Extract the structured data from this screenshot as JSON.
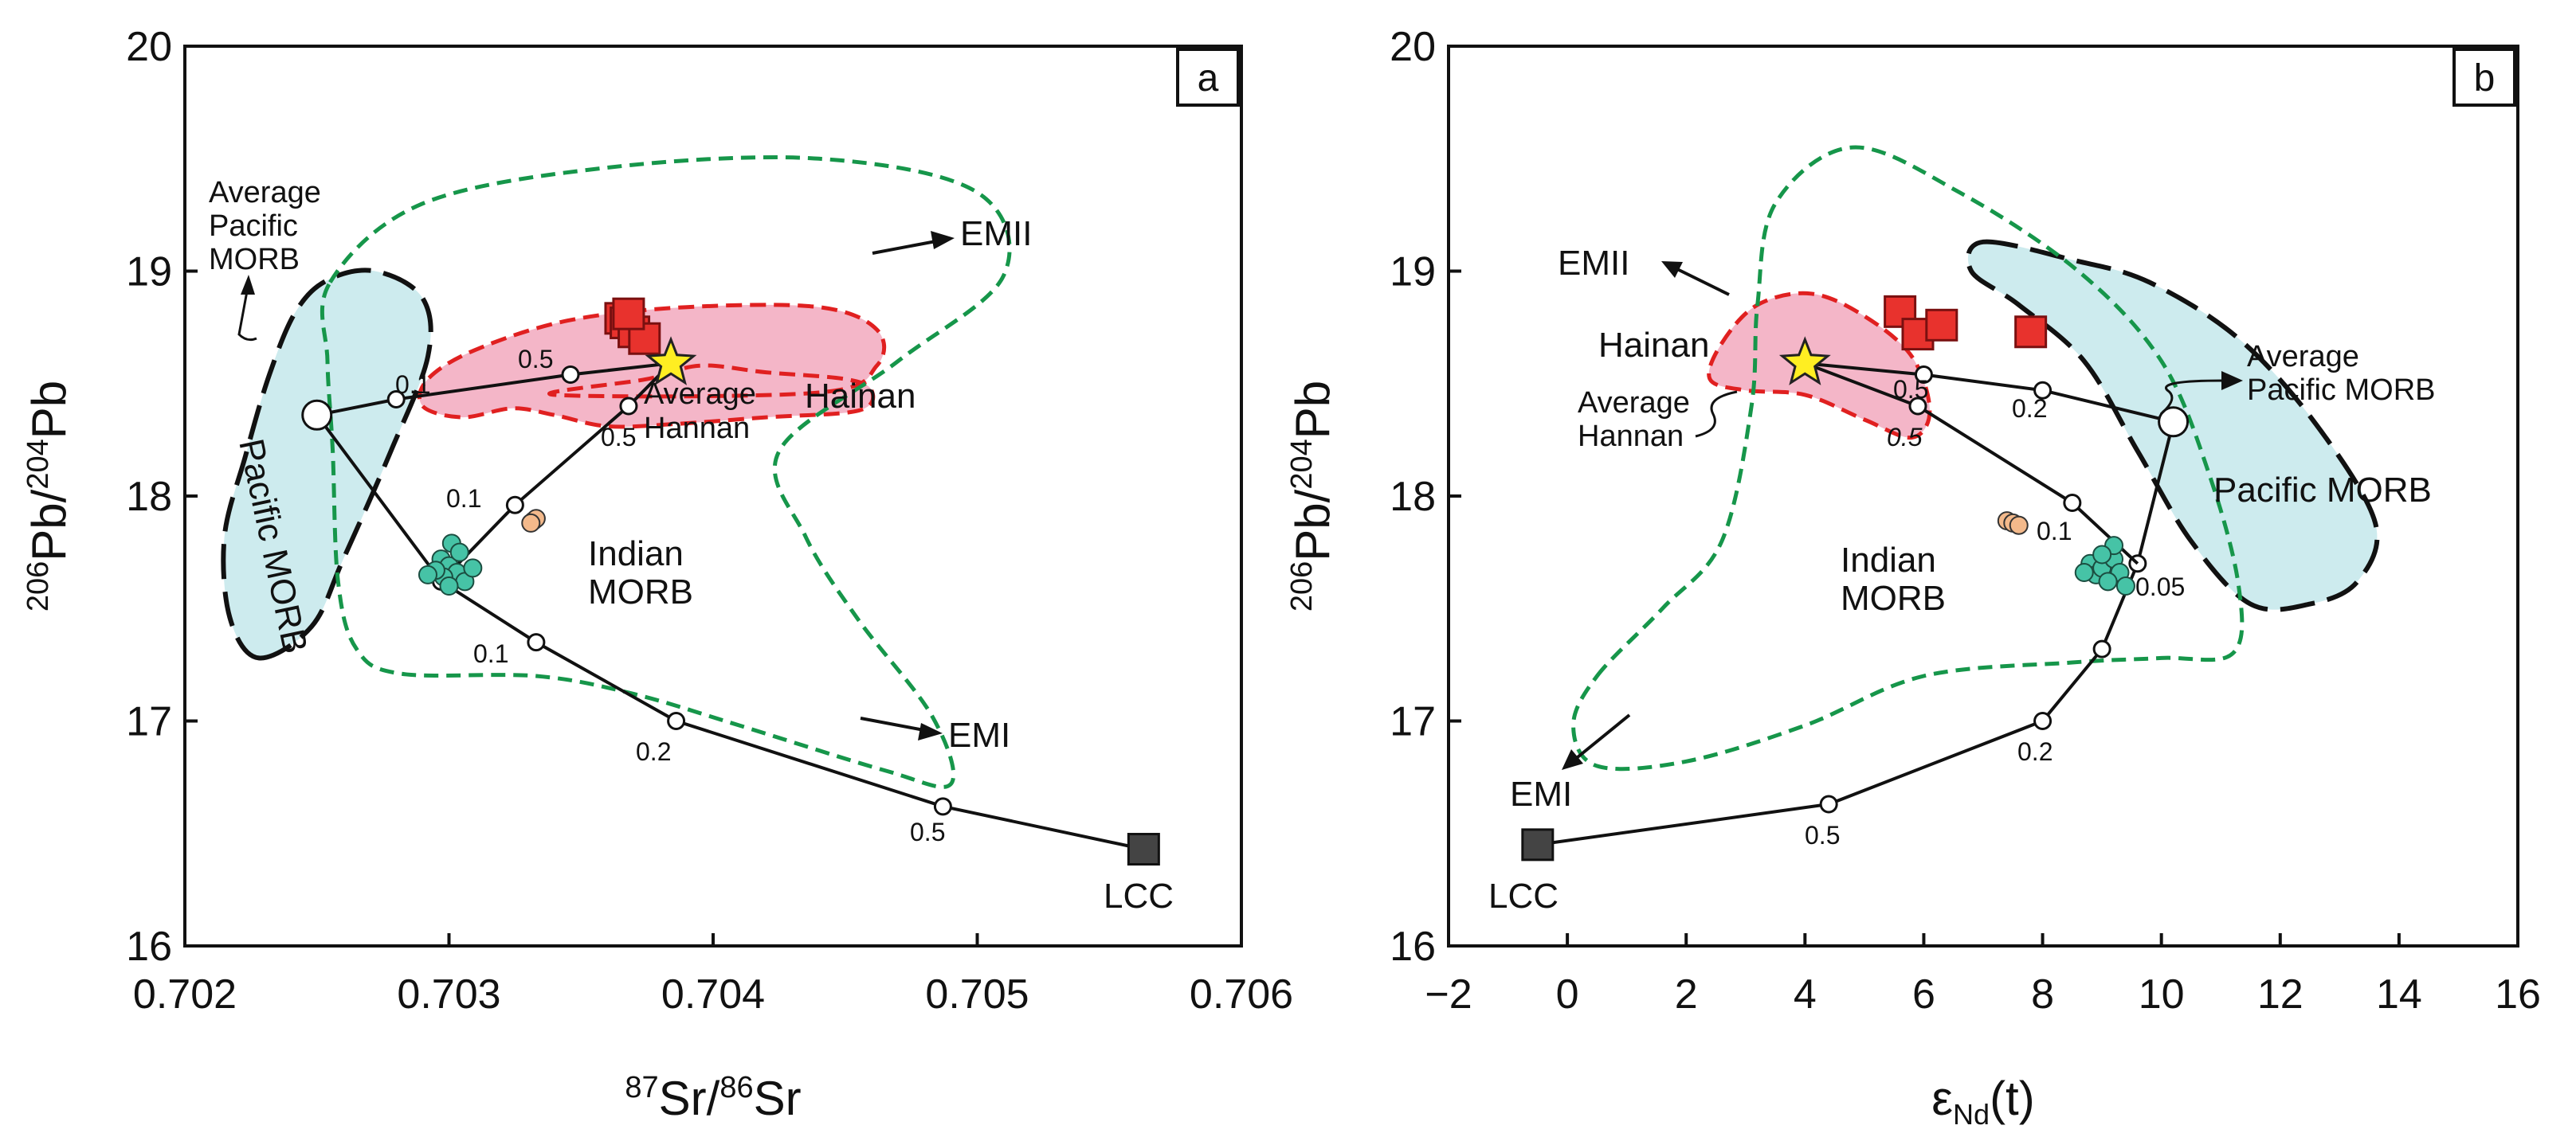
{
  "chart_data": [
    {
      "panel": "a",
      "type": "scatter",
      "xlabel": "87Sr/86Sr",
      "xlabel_parts": {
        "sup1": "87",
        "t1": "Sr/",
        "sup2": "86",
        "t2": "Sr"
      },
      "ylabel": "206Pb/204Pb",
      "ylabel_parts": {
        "sup1": "206",
        "t1": "Pb/",
        "sup2": "204",
        "t2": "Pb"
      },
      "xlim": [
        0.702,
        0.706
      ],
      "ylim": [
        16,
        20
      ],
      "xticks": [
        "0.702",
        "0.703",
        "0.704",
        "0.705",
        "0.706"
      ],
      "yticks": [
        "16",
        "17",
        "18",
        "19",
        "20"
      ],
      "fields": [
        {
          "name": "Hainan",
          "color": "#f4b6c8",
          "outline": "#e02020",
          "points": [
            [
              0.7034,
              18.45
            ],
            [
              0.70375,
              18.52
            ],
            [
              0.70395,
              18.58
            ],
            [
              0.7042,
              18.55
            ],
            [
              0.7045,
              18.52
            ],
            [
              0.7046,
              18.47
            ],
            [
              0.70455,
              18.38
            ],
            [
              0.7042,
              18.35
            ],
            [
              0.70385,
              18.32
            ],
            [
              0.7036,
              18.31
            ],
            [
              0.7034,
              18.36
            ],
            [
              0.70324,
              18.39
            ],
            [
              0.70305,
              18.35
            ],
            [
              0.7029,
              18.4
            ],
            [
              0.70292,
              18.52
            ],
            [
              0.7031,
              18.65
            ],
            [
              0.70345,
              18.78
            ],
            [
              0.7039,
              18.84
            ],
            [
              0.7044,
              18.84
            ],
            [
              0.70462,
              18.74
            ],
            [
              0.70462,
              18.58
            ],
            [
              0.7044,
              18.46
            ]
          ]
        },
        {
          "name": "Pacific MORB",
          "color": "#cdebee",
          "outline": "#111111",
          "points": [
            [
              0.70228,
              17.28
            ],
            [
              0.70248,
              17.42
            ],
            [
              0.7026,
              17.72
            ],
            [
              0.70278,
              18.2
            ],
            [
              0.70292,
              18.62
            ],
            [
              0.7029,
              18.88
            ],
            [
              0.70272,
              19.0
            ],
            [
              0.70254,
              18.96
            ],
            [
              0.70242,
              18.82
            ],
            [
              0.70232,
              18.54
            ],
            [
              0.70223,
              18.18
            ],
            [
              0.70215,
              17.82
            ],
            [
              0.70217,
              17.46
            ]
          ]
        },
        {
          "name": "Indian MORB",
          "color": "none",
          "outline": "#16964a",
          "points": [
            [
              0.70255,
              18.95
            ],
            [
              0.7029,
              19.3
            ],
            [
              0.7036,
              19.46
            ],
            [
              0.7044,
              19.5
            ],
            [
              0.705,
              19.35
            ],
            [
              0.7051,
              18.98
            ],
            [
              0.7047,
              18.6
            ],
            [
              0.70425,
              18.2
            ],
            [
              0.70435,
              17.82
            ],
            [
              0.70455,
              17.45
            ],
            [
              0.70483,
              17.02
            ],
            [
              0.7049,
              16.72
            ],
            [
              0.70465,
              16.78
            ],
            [
              0.7041,
              16.98
            ],
            [
              0.7037,
              17.12
            ],
            [
              0.70333,
              17.2
            ],
            [
              0.70282,
              17.21
            ],
            [
              0.70265,
              17.32
            ],
            [
              0.70258,
              17.62
            ],
            [
              0.70256,
              18.2
            ],
            [
              0.70254,
              18.6
            ]
          ]
        }
      ],
      "mixing_lines": [
        {
          "from": "Average Pacific MORB",
          "to": "Average Hannan",
          "points": [
            [
              0.7025,
              18.36
            ],
            [
              0.7028,
              18.43
            ],
            [
              0.70346,
              18.54
            ],
            [
              0.70384,
              18.59
            ]
          ],
          "labels": [
            "0.1",
            "0.5"
          ]
        },
        {
          "from": "Average Pacific MORB",
          "to": "LCC",
          "points": [
            [
              0.7025,
              18.36
            ],
            [
              0.70297,
              17.62
            ],
            [
              0.70333,
              17.35
            ],
            [
              0.70386,
              17.0
            ],
            [
              0.70487,
              16.62
            ],
            [
              0.70563,
              16.43
            ]
          ],
          "labels": [
            "0.1",
            "0.2",
            "0.5"
          ]
        },
        {
          "from": "LCC",
          "to": "Average Hannan",
          "points": [
            [
              0.70297,
              17.62
            ],
            [
              0.70325,
              17.96
            ],
            [
              0.70368,
              18.4
            ],
            [
              0.70384,
              18.59
            ]
          ],
          "labels": [
            "0.1",
            "0.5"
          ]
        }
      ],
      "samples_red_squares": [
        [
          0.70365,
          18.79
        ],
        [
          0.70367,
          18.77
        ],
        [
          0.7037,
          18.73
        ],
        [
          0.70374,
          18.7
        ],
        [
          0.70368,
          18.81
        ]
      ],
      "samples_teal": [
        [
          0.70297,
          17.72
        ],
        [
          0.703,
          17.69
        ],
        [
          0.70303,
          17.66
        ],
        [
          0.70298,
          17.64
        ],
        [
          0.70306,
          17.62
        ],
        [
          0.703,
          17.6
        ],
        [
          0.70295,
          17.67
        ],
        [
          0.70309,
          17.68
        ],
        [
          0.70301,
          17.79
        ],
        [
          0.70304,
          17.75
        ],
        [
          0.70292,
          17.65
        ]
      ],
      "samples_orange": [
        [
          0.70332,
          17.89
        ],
        [
          0.70333,
          17.9
        ],
        [
          0.70331,
          17.88
        ]
      ],
      "endmembers": {
        "pacific": {
          "x": 0.7025,
          "y": 18.36,
          "label": "Average Pacific MORB"
        },
        "hannan": {
          "x": 0.70384,
          "y": 18.59,
          "label": "Average Hannan"
        },
        "lcc": {
          "x": 0.70563,
          "y": 16.43,
          "label": "LCC"
        }
      },
      "annotations": {
        "panel_label": "a",
        "emii": "EMII",
        "emi": "EMI",
        "lcc": "LCC",
        "hainan": "Hainan",
        "average_hannan": [
          "Average",
          "Hannan"
        ],
        "average_pacific_morb": [
          "Average",
          "Pacific",
          "MORB"
        ],
        "pacific_morb_rotated": "Pacific MORB",
        "indian_morb": [
          "Indian",
          "MORB"
        ],
        "fraction_labels": [
          "0.1",
          "0.5",
          "0.1",
          "0.5",
          "0.1",
          "0.2",
          "0.5"
        ]
      }
    },
    {
      "panel": "b",
      "type": "scatter",
      "xlabel": "εNd(t)",
      "xlabel_parts": {
        "t1": "ε",
        "sub": "Nd",
        "t2": "(t)"
      },
      "ylabel": "206Pb/204Pb",
      "ylabel_parts": {
        "sup1": "206",
        "t1": "Pb/",
        "sup2": "204",
        "t2": "Pb"
      },
      "xlim": [
        -2,
        16
      ],
      "ylim": [
        16,
        20
      ],
      "xticks": [
        "−2",
        "0",
        "2",
        "4",
        "6",
        "8",
        "10",
        "12",
        "14",
        "16"
      ],
      "yticks": [
        "16",
        "17",
        "18",
        "19",
        "20"
      ],
      "fields": [
        {
          "name": "Hainan",
          "color": "#f4b6c8",
          "outline": "#e02020",
          "points": [
            [
              2.6,
              18.68
            ],
            [
              3.2,
              18.85
            ],
            [
              4.1,
              18.9
            ],
            [
              5.0,
              18.8
            ],
            [
              5.8,
              18.62
            ],
            [
              6.1,
              18.38
            ],
            [
              5.8,
              18.26
            ],
            [
              5.0,
              18.34
            ],
            [
              4.0,
              18.45
            ],
            [
              3.0,
              18.47
            ],
            [
              2.4,
              18.52
            ]
          ]
        },
        {
          "name": "Pacific MORB",
          "color": "#cdebee",
          "outline": "#111111",
          "points": [
            [
              7.0,
              19.13
            ],
            [
              8.5,
              19.05
            ],
            [
              9.8,
              18.95
            ],
            [
              11.3,
              18.7
            ],
            [
              12.6,
              18.32
            ],
            [
              13.6,
              17.88
            ],
            [
              13.3,
              17.62
            ],
            [
              12.5,
              17.52
            ],
            [
              11.5,
              17.52
            ],
            [
              10.5,
              17.8
            ],
            [
              9.6,
              18.2
            ],
            [
              8.7,
              18.6
            ],
            [
              7.6,
              18.85
            ],
            [
              6.8,
              19.0
            ]
          ]
        },
        {
          "name": "Indian MORB",
          "color": "none",
          "outline": "#16964a",
          "points": [
            [
              0.5,
              17.2
            ],
            [
              1.6,
              17.5
            ],
            [
              2.6,
              17.8
            ],
            [
              3.1,
              18.4
            ],
            [
              3.2,
              18.85
            ],
            [
              3.5,
              19.3
            ],
            [
              4.8,
              19.55
            ],
            [
              6.6,
              19.35
            ],
            [
              8.6,
              19.0
            ],
            [
              10.0,
              18.6
            ],
            [
              10.8,
              18.1
            ],
            [
              11.3,
              17.6
            ],
            [
              11.2,
              17.3
            ],
            [
              10.0,
              17.28
            ],
            [
              8.5,
              17.26
            ],
            [
              6.0,
              17.2
            ],
            [
              4.0,
              16.98
            ],
            [
              2.0,
              16.82
            ],
            [
              0.5,
              16.8
            ],
            [
              0.1,
              16.98
            ]
          ]
        }
      ],
      "mixing_lines": [
        {
          "from": "Average Pacific MORB",
          "to": "Average Hannan",
          "points": [
            [
              10.2,
              18.33
            ],
            [
              8.0,
              18.47
            ],
            [
              6.0,
              18.54
            ],
            [
              4.0,
              18.59
            ]
          ],
          "labels": [
            "0.2",
            "0.5"
          ]
        },
        {
          "from": "Average Pacific MORB",
          "to": "LCC",
          "points": [
            [
              10.2,
              18.33
            ],
            [
              9.6,
              17.7
            ],
            [
              9.0,
              17.32
            ],
            [
              8.0,
              17.0
            ],
            [
              4.4,
              16.63
            ],
            [
              -0.5,
              16.45
            ]
          ],
          "labels": [
            "0.05",
            "0.2",
            "0.5"
          ]
        },
        {
          "from": "LCC",
          "to": "Average Hannan",
          "points": [
            [
              9.6,
              17.7
            ],
            [
              8.5,
              17.97
            ],
            [
              5.9,
              18.4
            ],
            [
              4.0,
              18.59
            ]
          ],
          "labels": [
            "0.1",
            "0.5"
          ]
        }
      ],
      "samples_red_squares": [
        [
          5.6,
          18.82
        ],
        [
          5.9,
          18.72
        ],
        [
          6.3,
          18.76
        ],
        [
          7.8,
          18.73
        ]
      ],
      "samples_teal": [
        [
          8.8,
          17.7
        ],
        [
          8.9,
          17.65
        ],
        [
          9.0,
          17.68
        ],
        [
          9.2,
          17.72
        ],
        [
          9.3,
          17.66
        ],
        [
          9.1,
          17.62
        ],
        [
          8.7,
          17.66
        ],
        [
          9.4,
          17.6
        ],
        [
          9.2,
          17.78
        ],
        [
          9.0,
          17.74
        ]
      ],
      "samples_orange": [
        [
          7.4,
          17.89
        ],
        [
          7.5,
          17.88
        ],
        [
          7.6,
          17.87
        ]
      ],
      "endmembers": {
        "pacific": {
          "x": 10.2,
          "y": 18.33,
          "label": "Average Pacific MORB"
        },
        "hannan": {
          "x": 4.0,
          "y": 18.59,
          "label": "Average Hannan"
        },
        "lcc": {
          "x": -0.5,
          "y": 16.45,
          "label": "LCC"
        }
      },
      "annotations": {
        "panel_label": "b",
        "emii": "EMII",
        "emi": "EMI",
        "lcc": "LCC",
        "hainan": "Hainan",
        "average_hannan": [
          "Average",
          "Hannan"
        ],
        "average_pacific_morb": [
          "Average",
          "Pacific MORB"
        ],
        "pacific_morb": "Pacific MORB",
        "indian_morb": [
          "Indian",
          "MORB"
        ],
        "fraction_labels": [
          "0.5",
          "0.2",
          "0.5",
          "0.1",
          "0.05",
          "0.2",
          "0.5"
        ]
      }
    }
  ]
}
